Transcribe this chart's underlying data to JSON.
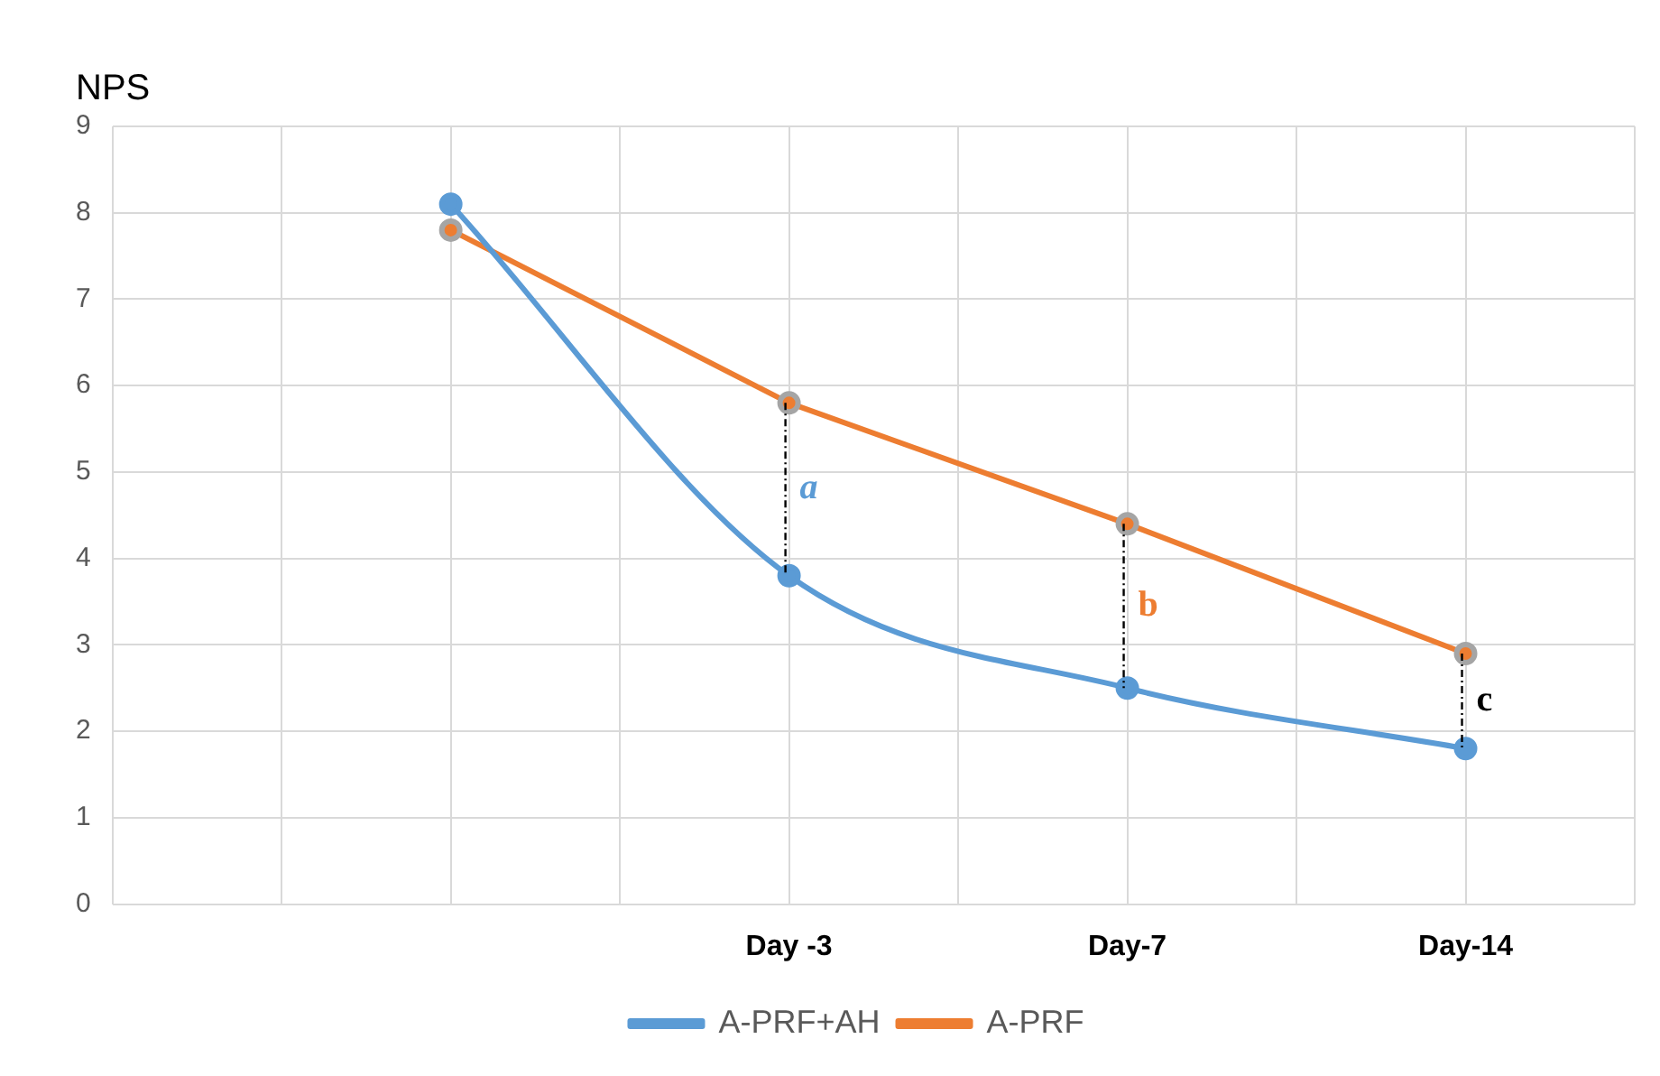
{
  "chart_data": {
    "type": "line",
    "ylabel": "NPS",
    "categories": [
      null,
      null,
      null,
      null,
      "Day -3",
      null,
      "Day-7",
      null,
      "Day-14",
      null
    ],
    "series": [
      {
        "name": "A-PRF+AH",
        "color": "#5b9bd5",
        "values": [
          null,
          null,
          8.1,
          null,
          3.8,
          null,
          2.5,
          null,
          1.8,
          null
        ]
      },
      {
        "name": "A-PRF",
        "color": "#ed7d31",
        "values": [
          null,
          null,
          7.8,
          null,
          5.8,
          null,
          4.4,
          null,
          2.9,
          null
        ]
      }
    ],
    "ylim": [
      0,
      9
    ],
    "yticks": [
      0,
      1,
      2,
      3,
      4,
      5,
      6,
      7,
      8,
      9
    ],
    "grid": true,
    "legend": "bottom",
    "marker": "circle",
    "annotations": [
      "a",
      "b",
      "c"
    ]
  }
}
